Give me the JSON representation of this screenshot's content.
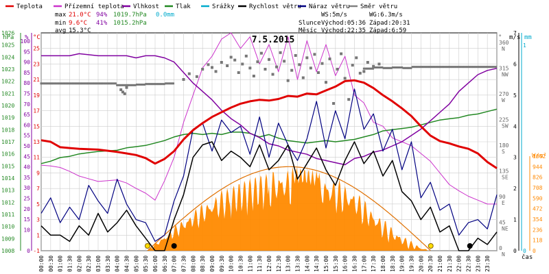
{
  "chart_data": {
    "type": "line",
    "title": "7.5.2015",
    "legend": [
      {
        "key": "teplota",
        "label": "Teplota",
        "color": "#e00000"
      },
      {
        "key": "prizemni",
        "label": "Přízemní teplota",
        "color": "#cc33cc"
      },
      {
        "key": "vlhkost",
        "label": "Vlhkost",
        "color": "#8000a0"
      },
      {
        "key": "tlak",
        "label": "Tlak",
        "color": "#228822"
      },
      {
        "key": "srazky",
        "label": "Srážky",
        "color": "#00aacc"
      },
      {
        "key": "rychlost",
        "label": "Rychlost větru",
        "color": "#000000"
      },
      {
        "key": "naraz",
        "label": "Náraz větru",
        "color": "#000080"
      },
      {
        "key": "smer",
        "label": "Směr větru",
        "color": "#808080"
      }
    ],
    "stats": {
      "max": {
        "label": "max",
        "temp": "21.0°C",
        "hum": "94%",
        "press": "1019.7hPa",
        "rain": "0.0mm"
      },
      "min": {
        "label": "min",
        "temp": "9.6°C",
        "hum": "41%",
        "press": "1015.2hPa"
      },
      "avg": {
        "label": "avg",
        "temp": "15.3°C"
      }
    },
    "wind_info": {
      "ws": "WS:5m/s",
      "wg": "WG:6.3m/s"
    },
    "sun_info": {
      "label": "Slunce",
      "rise": "Východ:05:36",
      "set": "Západ:20:31"
    },
    "moon_info": {
      "label": "Měsíc",
      "rise": "Východ:22:35",
      "set": "Západ:6:59"
    },
    "axes": {
      "hpa": {
        "unit": "hPa",
        "min": 1008,
        "max": 1026,
        "ticks": [
          1008,
          1009,
          1010,
          1011,
          1012,
          1013,
          1014,
          1015,
          1016,
          1017,
          1018,
          1019,
          1020,
          1021,
          1022,
          1023,
          1024,
          1025,
          1026
        ]
      },
      "percent": {
        "unit": "%",
        "min": 0,
        "max": 100,
        "ticks": [
          0,
          10,
          15,
          20,
          25,
          30,
          35,
          40,
          45,
          50,
          55,
          60,
          65,
          70,
          75,
          80,
          85,
          90,
          95,
          100
        ]
      },
      "celsius": {
        "unit": "°C",
        "min": -1,
        "max": 27,
        "ticks": [
          -1,
          1,
          3,
          5,
          7,
          9,
          11,
          13,
          15,
          17,
          19,
          21,
          23,
          25
        ]
      },
      "degrees": {
        "unit": "°",
        "labels": [
          {
            "deg": "0",
            "dir": "N",
            "frac": 0.0
          },
          {
            "deg": "45",
            "dir": "NE",
            "frac": 0.125
          },
          {
            "deg": "90",
            "dir": "E",
            "frac": 0.25
          },
          {
            "deg": "135",
            "dir": "SE",
            "frac": 0.375
          },
          {
            "deg": "180",
            "dir": "S",
            "frac": 0.5
          },
          {
            "deg": "225",
            "dir": "SW",
            "frac": 0.625
          },
          {
            "deg": "270",
            "dir": "W",
            "frac": 0.75
          },
          {
            "deg": "315",
            "dir": "NW",
            "frac": 0.875
          },
          {
            "deg": "360",
            "dir": "N",
            "frac": 1.0
          }
        ]
      },
      "wind": {
        "unit": "m/s",
        "min": 0,
        "max": 7,
        "ticks": [
          0,
          1,
          2,
          3,
          4,
          5,
          6,
          7
        ]
      },
      "rain": {
        "unit": "mm",
        "min": 0,
        "max": 1,
        "ticks": [
          0,
          1
        ]
      },
      "solar": {
        "unit": "W/m²",
        "min": 0,
        "max": 1062,
        "ticks": [
          0,
          118,
          236,
          354,
          472,
          590,
          708,
          826,
          944,
          1062
        ]
      },
      "time": {
        "unit": "čas",
        "labels": [
          "00:00",
          "00:30",
          "01:00",
          "01:30",
          "02:00",
          "02:30",
          "03:00",
          "03:30",
          "04:00",
          "04:30",
          "05:00",
          "05:30",
          "06:00",
          "06:30",
          "07:00",
          "07:30",
          "08:00",
          "08:30",
          "09:00",
          "09:30",
          "10:00",
          "10:30",
          "11:00",
          "11:30",
          "12:00",
          "12:30",
          "13:00",
          "13:30",
          "14:00",
          "14:30",
          "15:00",
          "15:30",
          "16:00",
          "16:30",
          "17:00",
          "17:30",
          "18:00",
          "18:30",
          "19:00",
          "19:30",
          "20:00",
          "20:30",
          "21:00",
          "21:30",
          "22:00",
          "22:30",
          "23:00",
          "23:30"
        ]
      }
    },
    "markers": [
      {
        "hour": 5.6,
        "kind": "sunrise"
      },
      {
        "hour": 7.0,
        "kind": "moonset"
      },
      {
        "hour": 20.52,
        "kind": "sunset"
      },
      {
        "hour": 22.58,
        "kind": "moonrise"
      }
    ],
    "series": {
      "teplota": {
        "x": [
          0,
          0.5,
          1,
          1.5,
          2,
          3,
          4,
          4.5,
          5,
          5.5,
          6,
          6.5,
          7,
          7.5,
          8,
          8.5,
          9,
          9.5,
          10,
          10.5,
          11,
          11.5,
          12,
          12.5,
          13,
          13.5,
          14,
          14.5,
          15,
          15.5,
          16,
          16.5,
          17,
          17.5,
          18,
          18.5,
          19,
          19.5,
          20,
          20.5,
          21,
          21.5,
          22,
          22.5,
          23,
          23.5,
          24
        ],
        "y": [
          13.2,
          13,
          12.3,
          12.2,
          12.1,
          12.0,
          11.7,
          11.5,
          11.3,
          10.9,
          10.2,
          10.8,
          11.8,
          13.3,
          14.5,
          15.4,
          16.2,
          16.8,
          17.4,
          17.9,
          18.2,
          18.4,
          18.3,
          18.5,
          18.9,
          18.8,
          19.2,
          19.1,
          19.6,
          20.1,
          20.8,
          20.9,
          20.6,
          19.9,
          19.0,
          18.2,
          17.3,
          16.3,
          15.0,
          13.8,
          13.1,
          12.8,
          12.4,
          12.1,
          11.5,
          10.4,
          9.6
        ]
      },
      "prizemni": {
        "x": [
          0,
          0.5,
          1,
          1.5,
          2,
          3,
          4,
          4.5,
          5,
          5.5,
          6,
          6.5,
          7,
          7.5,
          8,
          8.5,
          9,
          9.5,
          10,
          10.5,
          11,
          11.5,
          12,
          12.5,
          13,
          13.5,
          14,
          14.5,
          15,
          15.5,
          16,
          16.5,
          17,
          17.5,
          18,
          18.5,
          19,
          19.5,
          20,
          20.5,
          21,
          21.5,
          22,
          22.5,
          23,
          23.5,
          24
        ],
        "y": [
          10.0,
          9.9,
          9.7,
          9.2,
          8.6,
          7.9,
          8.1,
          7.7,
          7.0,
          6.4,
          5.5,
          8.0,
          11.0,
          15.5,
          19.0,
          22.5,
          24.0,
          26.2,
          27.0,
          25.0,
          26.5,
          23.0,
          25.5,
          22.0,
          26.5,
          21.0,
          26.0,
          22.0,
          25.5,
          21.5,
          24.0,
          19.0,
          18.0,
          15.5,
          15.0,
          13.5,
          13.0,
          12.5,
          11.5,
          10.5,
          9.0,
          7.5,
          6.7,
          6.0,
          5.5,
          5.0,
          5.0
        ]
      },
      "vlhkost": {
        "x": [
          0,
          0.5,
          1,
          1.5,
          2,
          3,
          4,
          4.5,
          5,
          5.5,
          6,
          6.5,
          7,
          7.5,
          8,
          8.5,
          9,
          9.5,
          10,
          10.5,
          11,
          11.5,
          12,
          12.5,
          13,
          13.5,
          14,
          14.5,
          15,
          15.5,
          16,
          16.5,
          17,
          17.5,
          18,
          18.5,
          19,
          19.5,
          20,
          20.5,
          21,
          21.5,
          22,
          22.5,
          23,
          23.5,
          24
        ],
        "y": [
          93,
          93,
          93,
          93,
          94,
          93,
          93,
          93,
          92,
          93,
          93,
          92,
          90,
          85,
          80,
          76,
          72,
          67,
          63,
          60,
          56,
          54,
          51,
          50,
          48,
          47,
          46,
          44,
          43,
          42,
          41,
          44,
          45,
          47,
          48,
          50,
          52,
          55,
          58,
          62,
          66,
          70,
          76,
          80,
          84,
          86,
          87
        ]
      },
      "tlak": {
        "x": [
          0,
          0.5,
          1,
          1.5,
          2,
          3,
          4,
          4.5,
          5,
          5.5,
          6,
          6.5,
          7,
          7.5,
          8,
          8.5,
          9,
          9.5,
          10,
          10.5,
          11,
          11.5,
          12,
          12.5,
          13,
          13.5,
          14,
          14.5,
          15,
          15.5,
          16,
          16.5,
          17,
          17.5,
          18,
          18.5,
          19,
          19.5,
          20,
          20.5,
          21,
          21.5,
          22,
          22.5,
          23,
          23.5,
          24
        ],
        "y": [
          1015.2,
          1015.4,
          1015.7,
          1015.8,
          1016.0,
          1016.2,
          1016.3,
          1016.5,
          1016.6,
          1016.7,
          1016.9,
          1017.1,
          1017.4,
          1017.6,
          1017.7,
          1017.6,
          1017.7,
          1017.6,
          1017.8,
          1017.8,
          1017.7,
          1017.4,
          1017.6,
          1017.3,
          1017.1,
          1017.0,
          1016.9,
          1017.0,
          1017.1,
          1017.0,
          1017.1,
          1017.2,
          1017.4,
          1017.6,
          1017.9,
          1018.0,
          1018.1,
          1018.2,
          1018.4,
          1018.6,
          1018.8,
          1018.9,
          1019.0,
          1019.2,
          1019.3,
          1019.5,
          1019.7
        ]
      },
      "rychlost": {
        "x": [
          0,
          0.5,
          1,
          1.5,
          2,
          2.5,
          3,
          3.5,
          4,
          4.5,
          5,
          5.5,
          6,
          6.5,
          7,
          7.5,
          8,
          8.5,
          9,
          9.5,
          10,
          10.5,
          11,
          11.5,
          12,
          12.5,
          13,
          13.5,
          14,
          14.5,
          15,
          15.5,
          16,
          16.5,
          17,
          17.5,
          18,
          18.5,
          19,
          19.5,
          20,
          20.5,
          21,
          21.5,
          22,
          22.5,
          23,
          23.5,
          24
        ],
        "y": [
          0.8,
          0.5,
          0.5,
          0.3,
          0.8,
          0.5,
          1.2,
          0.6,
          0.9,
          1.3,
          0.8,
          0.4,
          0.0,
          0.0,
          1.0,
          1.8,
          3.0,
          3.4,
          3.5,
          2.9,
          3.2,
          3.0,
          2.7,
          3.4,
          2.6,
          2.9,
          3.4,
          2.3,
          2.8,
          3.3,
          2.6,
          2.1,
          2.9,
          3.5,
          2.8,
          3.2,
          2.4,
          2.9,
          1.9,
          1.6,
          1.0,
          1.4,
          0.6,
          0.8,
          0.0,
          0.0,
          0.4,
          0.2,
          0.6
        ]
      },
      "naraz": {
        "x": [
          0,
          0.5,
          1,
          1.5,
          2,
          2.5,
          3,
          3.5,
          4,
          4.5,
          5,
          5.5,
          6,
          6.5,
          7,
          7.5,
          8,
          8.5,
          9,
          9.5,
          10,
          10.5,
          11,
          11.5,
          12,
          12.5,
          13,
          13.5,
          14,
          14.5,
          15,
          15.5,
          16,
          16.5,
          17,
          17.5,
          18,
          18.5,
          19,
          19.5,
          20,
          20.5,
          21,
          21.5,
          22,
          22.5,
          23,
          23.5,
          24
        ],
        "y": [
          1.2,
          1.7,
          0.9,
          1.4,
          1.0,
          2.1,
          1.6,
          1.2,
          2.3,
          1.5,
          1.0,
          0.9,
          0.3,
          0.5,
          1.6,
          2.4,
          3.9,
          4.1,
          3.2,
          4.2,
          3.8,
          4.0,
          3.1,
          4.3,
          3.0,
          4.1,
          3.4,
          2.9,
          3.6,
          4.8,
          3.3,
          4.5,
          3.6,
          5.2,
          3.9,
          4.4,
          3.2,
          3.9,
          2.6,
          3.5,
          1.7,
          2.2,
          1.3,
          1.5,
          0.5,
          0.9,
          1.0,
          0.7,
          1.8
        ]
      },
      "smer_main": {
        "x": [
          0,
          0.5,
          1,
          1.5,
          2,
          2.5,
          3,
          3.5,
          4,
          4.5,
          5,
          5.5,
          6,
          6.5,
          7,
          17,
          17.5,
          18,
          18.5,
          19,
          19.5,
          20,
          20.5,
          21,
          21.5,
          22,
          22.5,
          23,
          23.5,
          24
        ],
        "y": [
          293,
          293,
          293,
          293,
          293,
          293,
          293,
          293,
          290,
          290,
          291,
          292,
          292,
          293,
          294,
          319,
          321,
          320,
          321,
          320,
          322,
          322,
          322,
          322,
          322,
          322,
          322,
          322,
          322,
          322
        ]
      },
      "smer_scatter": {
        "x": [
          4.2,
          4.3,
          4.4,
          4.5,
          7.5,
          7.8,
          8.2,
          8.5,
          8.8,
          9.0,
          9.2,
          9.5,
          9.8,
          10.0,
          10.2,
          10.4,
          10.6,
          10.8,
          11.0,
          11.2,
          11.4,
          11.6,
          11.8,
          12.0,
          12.2,
          12.4,
          12.6,
          12.8,
          13.0,
          13.2,
          13.4,
          13.6,
          13.8,
          14.0,
          14.2,
          14.4,
          14.6,
          14.8,
          15.0,
          15.2,
          15.4,
          15.6,
          15.8,
          16.0,
          16.2,
          16.4,
          16.6,
          16.8,
          17.0,
          17.2,
          17.5,
          17.8
        ],
        "y": [
          282,
          278,
          275,
          286,
          300,
          310,
          305,
          318,
          326,
          321,
          314,
          330,
          324,
          339,
          334,
          312,
          327,
          341,
          320,
          306,
          331,
          346,
          318,
          335,
          309,
          322,
          347,
          332,
          298,
          316,
          342,
          326,
          303,
          338,
          320,
          344,
          312,
          328,
          295,
          336,
          258,
          318,
          345,
          302,
          265,
          325,
          338,
          311,
          314,
          330,
          323,
          327
        ]
      }
    }
  }
}
